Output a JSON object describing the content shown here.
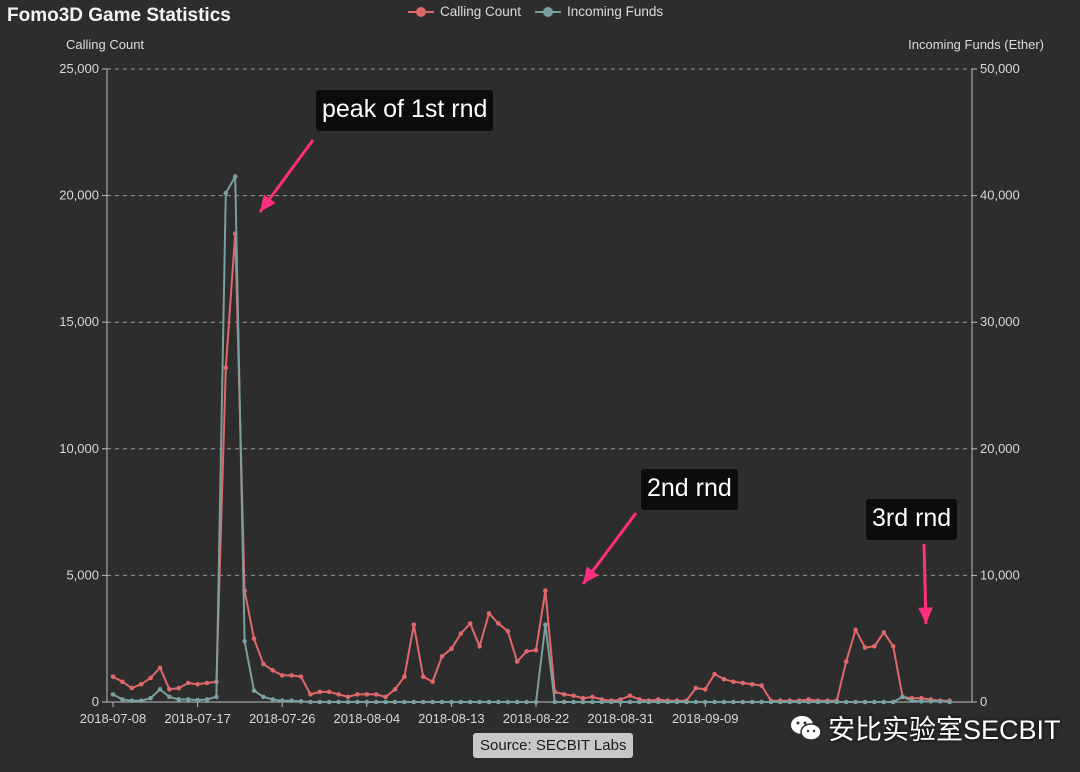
{
  "title": "Fomo3D Game Statistics",
  "legend": [
    {
      "label": "Calling Count",
      "color": "#e06868"
    },
    {
      "label": "Incoming Funds",
      "color": "#7a9fa0"
    }
  ],
  "source_label": "Source: SECBIT Labs",
  "watermark_text": "安比实验室SECBIT",
  "annotations": {
    "peak1": "peak of 1st rnd",
    "rnd2": "2nd rnd",
    "rnd3": "3rd rnd"
  },
  "chart_data": {
    "type": "line",
    "title": "Fomo3D Game Statistics",
    "x_tick_labels": [
      "2018-07-08",
      "2018-07-17",
      "2018-07-26",
      "2018-08-04",
      "2018-08-13",
      "2018-08-22",
      "2018-08-31",
      "2018-09-09"
    ],
    "left_axis": {
      "label": "Calling Count",
      "ylim": [
        0,
        25000
      ],
      "ticks": [
        "0",
        "5,000",
        "10,000",
        "15,000",
        "20,000",
        "25,000"
      ]
    },
    "right_axis": {
      "label": "Incoming Funds (Ether)",
      "ylim": [
        0,
        50000
      ],
      "ticks": [
        "0",
        "10,000",
        "20,000",
        "30,000",
        "40,000",
        "50,000"
      ]
    },
    "grid": "horizontal dashed",
    "legend_position": "top-center",
    "series": [
      {
        "name": "Calling Count",
        "axis": "left",
        "color": "#e06868",
        "values": [
          1000,
          800,
          550,
          700,
          950,
          1350,
          500,
          550,
          750,
          700,
          750,
          800,
          13200,
          18500,
          4400,
          2500,
          1500,
          1250,
          1050,
          1050,
          1000,
          300,
          400,
          400,
          300,
          200,
          300,
          300,
          300,
          200,
          500,
          1000,
          3050,
          1000,
          800,
          1800,
          2100,
          2700,
          3100,
          2200,
          3500,
          3100,
          2800,
          1600,
          2000,
          2050,
          4400,
          400,
          300,
          250,
          150,
          200,
          100,
          50,
          100,
          250,
          100,
          50,
          100,
          50,
          50,
          50,
          550,
          500,
          1100,
          900,
          800,
          750,
          700,
          650,
          50,
          50,
          50,
          50,
          100,
          50,
          50,
          50,
          1600,
          2850,
          2150,
          2200,
          2750,
          2200,
          200,
          150,
          150,
          100,
          50,
          50
        ]
      },
      {
        "name": "Incoming Funds",
        "axis": "right",
        "color": "#7a9fa0",
        "values": [
          600,
          200,
          100,
          100,
          300,
          1000,
          400,
          200,
          200,
          150,
          200,
          400,
          40200,
          41500,
          4800,
          900,
          400,
          200,
          100,
          100,
          50,
          0,
          0,
          0,
          0,
          0,
          0,
          0,
          0,
          0,
          0,
          0,
          0,
          0,
          0,
          0,
          0,
          0,
          0,
          0,
          0,
          0,
          0,
          0,
          0,
          0,
          6100,
          0,
          0,
          0,
          0,
          0,
          0,
          0,
          0,
          0,
          0,
          0,
          0,
          0,
          0,
          0,
          0,
          0,
          0,
          0,
          0,
          0,
          0,
          0,
          0,
          0,
          0,
          0,
          0,
          0,
          0,
          0,
          0,
          0,
          0,
          0,
          0,
          0,
          400,
          100,
          50,
          50,
          50,
          0
        ]
      }
    ]
  }
}
